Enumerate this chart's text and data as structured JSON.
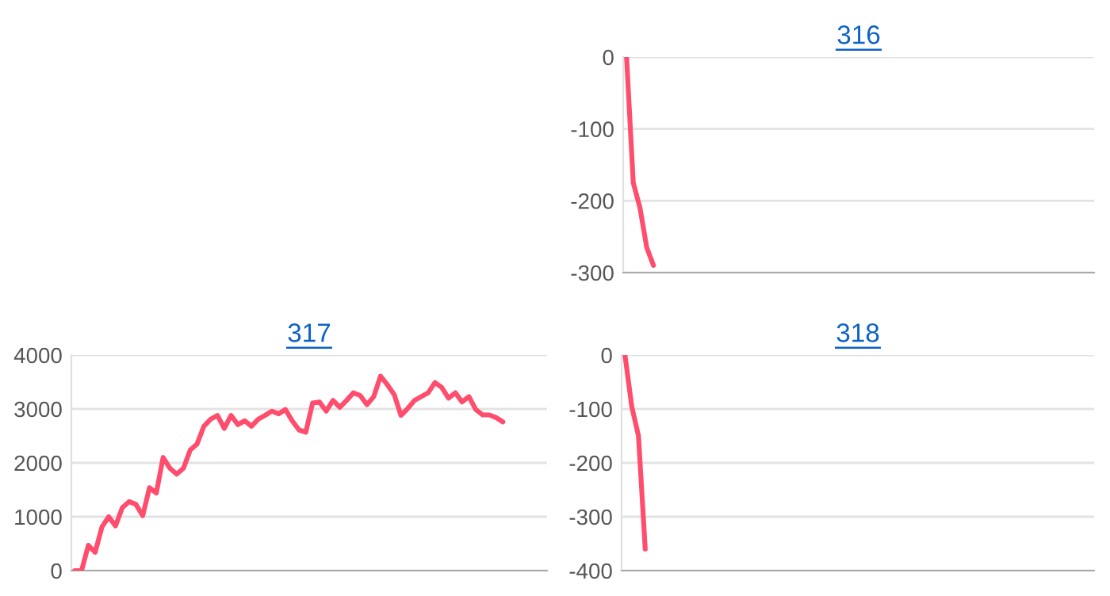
{
  "chart_data": [
    {
      "type": "line",
      "title": "316",
      "color": "#ff4d6d",
      "grid": "y",
      "ylim": [
        -300,
        0
      ],
      "yticks": [
        -300,
        -200,
        -100,
        0
      ],
      "tick_labels": "y",
      "categories": [
        null,
        null,
        null,
        null,
        null,
        null,
        null,
        null,
        null,
        null,
        null,
        null,
        null,
        null,
        null,
        null,
        null,
        null,
        null,
        null,
        null,
        null,
        null,
        null,
        null,
        null,
        null,
        null,
        null,
        null,
        null,
        null,
        null,
        null,
        null,
        null,
        null,
        null,
        null,
        null,
        null,
        null,
        null,
        null,
        null,
        null,
        null,
        null,
        null,
        null,
        null,
        null,
        null,
        null,
        null,
        null,
        null,
        null,
        null,
        null,
        null,
        null,
        null,
        null,
        null,
        null,
        null,
        null,
        null,
        null
      ],
      "values": [
        0,
        -175,
        -210,
        -265,
        -290,
        null,
        null,
        null,
        null,
        null,
        null,
        null,
        null,
        null,
        null,
        null,
        null,
        null,
        null,
        null,
        null,
        null,
        null,
        null,
        null,
        null,
        null,
        null,
        null,
        null,
        null,
        null,
        null,
        null,
        null,
        null,
        null,
        null,
        null,
        null,
        null,
        null,
        null,
        null,
        null,
        null,
        null,
        null,
        null,
        null,
        null,
        null,
        null,
        null,
        null,
        null,
        null,
        null,
        null,
        null,
        null,
        null,
        null,
        null,
        null,
        null,
        null,
        null,
        null,
        null
      ]
    },
    {
      "type": "line",
      "title": "317",
      "color": "#ff4d6d",
      "grid": "y",
      "ylim": [
        0,
        4000
      ],
      "yticks": [
        0,
        1000,
        2000,
        3000,
        4000
      ],
      "tick_labels": "y",
      "categories": [
        null,
        null,
        null,
        null,
        null,
        null,
        null,
        null,
        null,
        null,
        null,
        null,
        null,
        null,
        null,
        null,
        null,
        null,
        null,
        null,
        null,
        null,
        null,
        null,
        null,
        null,
        null,
        null,
        null,
        null,
        null,
        null,
        null,
        null,
        null,
        null,
        null,
        null,
        null,
        null,
        null,
        null,
        null,
        null,
        null,
        null,
        null,
        null,
        null,
        null,
        null,
        null,
        null,
        null,
        null,
        null,
        null,
        null,
        null,
        null,
        null,
        null,
        null,
        null,
        null,
        null,
        null,
        null,
        null,
        null
      ],
      "values": [
        0,
        0,
        470,
        340,
        810,
        1000,
        830,
        1170,
        1280,
        1230,
        1020,
        1540,
        1440,
        2100,
        1900,
        1790,
        1900,
        2240,
        2350,
        2680,
        2810,
        2880,
        2640,
        2880,
        2710,
        2780,
        2680,
        2810,
        2880,
        2960,
        2910,
        2990,
        2780,
        2610,
        2570,
        3110,
        3130,
        2960,
        3160,
        3030,
        3160,
        3300,
        3250,
        3080,
        3230,
        3610,
        3450,
        3270,
        2880,
        3010,
        3160,
        3230,
        3300,
        3490,
        3400,
        3200,
        3300,
        3130,
        3230,
        2990,
        2890,
        2890,
        2840,
        2760,
        null,
        null,
        null,
        null,
        null,
        null
      ]
    },
    {
      "type": "line",
      "title": "318",
      "color": "#ff4d6d",
      "grid": "y",
      "ylim": [
        -400,
        0
      ],
      "yticks": [
        -400,
        -300,
        -200,
        -100,
        0
      ],
      "tick_labels": "y",
      "categories": [
        null,
        null,
        null,
        null,
        null,
        null,
        null,
        null,
        null,
        null,
        null,
        null,
        null,
        null,
        null,
        null,
        null,
        null,
        null,
        null,
        null,
        null,
        null,
        null,
        null,
        null,
        null,
        null,
        null,
        null,
        null,
        null,
        null,
        null,
        null,
        null,
        null,
        null,
        null,
        null,
        null,
        null,
        null,
        null,
        null,
        null,
        null,
        null,
        null,
        null,
        null,
        null,
        null,
        null,
        null,
        null,
        null,
        null,
        null,
        null,
        null,
        null,
        null,
        null,
        null,
        null,
        null,
        null,
        null,
        null
      ],
      "values": [
        0,
        -95,
        -150,
        -360,
        null,
        null,
        null,
        null,
        null,
        null,
        null,
        null,
        null,
        null,
        null,
        null,
        null,
        null,
        null,
        null,
        null,
        null,
        null,
        null,
        null,
        null,
        null,
        null,
        null,
        null,
        null,
        null,
        null,
        null,
        null,
        null,
        null,
        null,
        null,
        null,
        null,
        null,
        null,
        null,
        null,
        null,
        null,
        null,
        null,
        null,
        null,
        null,
        null,
        null,
        null,
        null,
        null,
        null,
        null,
        null,
        null,
        null,
        null,
        null,
        null,
        null,
        null,
        null,
        null,
        null
      ]
    }
  ]
}
